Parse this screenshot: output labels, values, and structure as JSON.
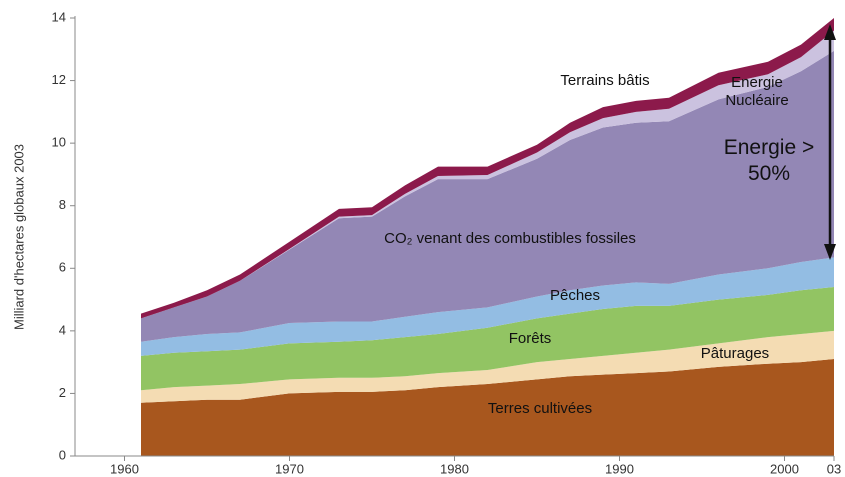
{
  "chart_data": {
    "type": "area",
    "stacked": true,
    "y_label": "Milliard d'hectares globaux 2003",
    "x": [
      1961,
      1963,
      1965,
      1967,
      1970,
      1973,
      1975,
      1977,
      1979,
      1982,
      1985,
      1987,
      1989,
      1991,
      1993,
      1996,
      1999,
      2001,
      2003
    ],
    "series": [
      {
        "name": "Terres cultivées",
        "color": "#a8571e",
        "values": [
          1.7,
          1.75,
          1.8,
          1.8,
          2.0,
          2.05,
          2.05,
          2.1,
          2.2,
          2.3,
          2.45,
          2.55,
          2.6,
          2.65,
          2.7,
          2.85,
          2.95,
          3.0,
          3.1
        ]
      },
      {
        "name": "Pâturages",
        "color": "#f4dcb3",
        "values": [
          0.4,
          0.45,
          0.45,
          0.5,
          0.45,
          0.45,
          0.45,
          0.45,
          0.45,
          0.45,
          0.55,
          0.55,
          0.6,
          0.65,
          0.7,
          0.75,
          0.85,
          0.9,
          0.9
        ]
      },
      {
        "name": "Forêts",
        "color": "#92c463",
        "values": [
          1.1,
          1.1,
          1.1,
          1.1,
          1.15,
          1.15,
          1.2,
          1.25,
          1.25,
          1.35,
          1.4,
          1.45,
          1.5,
          1.5,
          1.4,
          1.4,
          1.35,
          1.4,
          1.4
        ]
      },
      {
        "name": "Pêches",
        "color": "#93bde3",
        "values": [
          0.45,
          0.5,
          0.55,
          0.55,
          0.65,
          0.65,
          0.6,
          0.65,
          0.7,
          0.65,
          0.7,
          0.75,
          0.75,
          0.75,
          0.7,
          0.8,
          0.85,
          0.9,
          0.95
        ]
      },
      {
        "name": "CO₂ venant des combustibles fossiles",
        "color": "#9387b5",
        "values": [
          0.75,
          0.95,
          1.2,
          1.65,
          2.35,
          3.3,
          3.35,
          3.85,
          4.25,
          4.1,
          4.4,
          4.8,
          5.05,
          5.1,
          5.2,
          5.6,
          5.8,
          6.1,
          6.6
        ]
      },
      {
        "name": "Energie Nucléaire",
        "color": "#cbc2df",
        "values": [
          0,
          0,
          0,
          0,
          0.02,
          0.05,
          0.05,
          0.08,
          0.1,
          0.13,
          0.2,
          0.25,
          0.3,
          0.35,
          0.4,
          0.45,
          0.4,
          0.45,
          0.65
        ]
      },
      {
        "name": "Terrains bâtis",
        "color": "#8c1a4b",
        "values": [
          0.15,
          0.15,
          0.2,
          0.2,
          0.23,
          0.25,
          0.25,
          0.27,
          0.3,
          0.27,
          0.25,
          0.3,
          0.35,
          0.35,
          0.35,
          0.4,
          0.4,
          0.4,
          0.4
        ]
      }
    ],
    "annotation": "Energie > 50%",
    "xlim": [
      1957,
      2003
    ],
    "xticks": [
      1960,
      1970,
      1980,
      1990,
      2000,
      {
        "value": 2003,
        "label": "03"
      }
    ],
    "ylim": [
      0,
      14
    ],
    "yticks": [
      0,
      2,
      4,
      6,
      8,
      10,
      12,
      14
    ],
    "grid": false
  }
}
